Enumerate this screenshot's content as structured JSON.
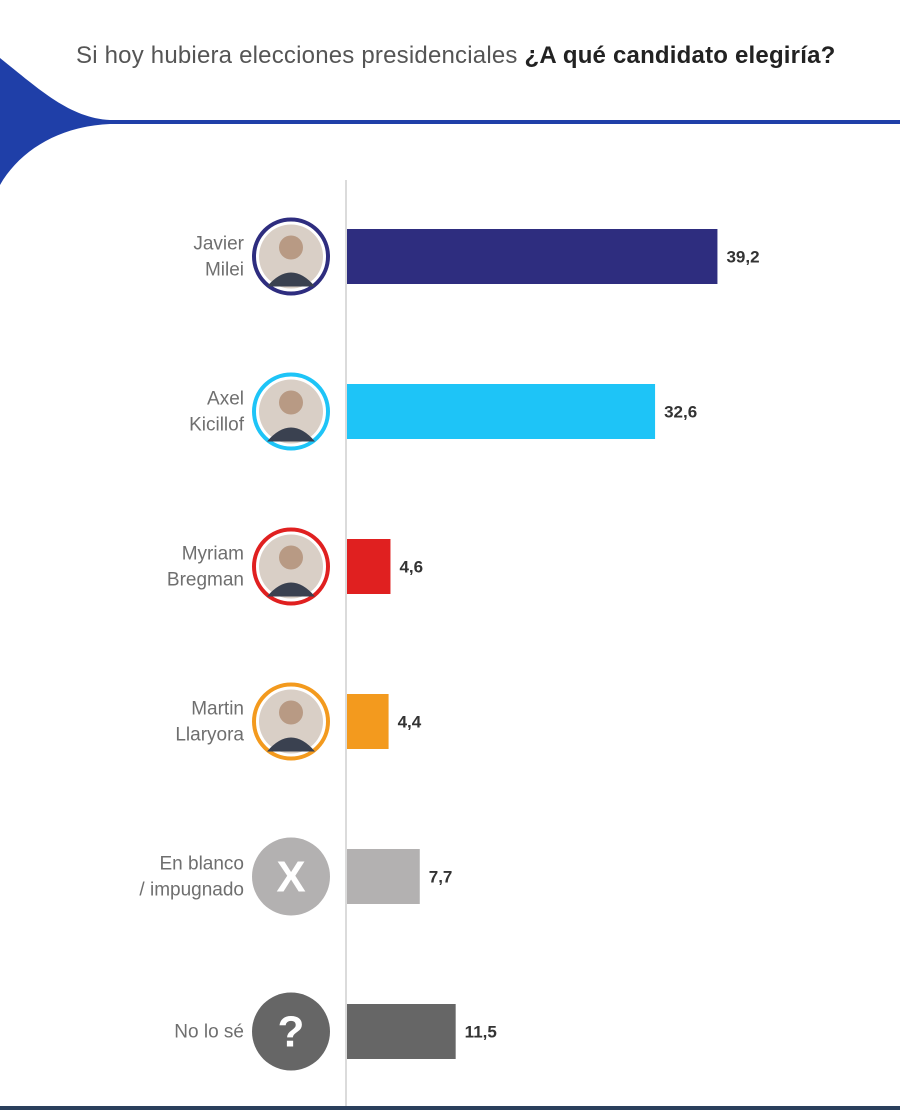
{
  "header": {
    "question_plain": "Si hoy hubiera elecciones presidenciales ",
    "question_bold": "¿A qué candidato elegiría?"
  },
  "colors": {
    "brand_blue": "#1f3fa8",
    "axis": "#cfcfcf"
  },
  "chart_data": {
    "type": "bar",
    "orientation": "horizontal",
    "title": "Si hoy hubiera elecciones presidenciales ¿A qué candidato elegiría?",
    "categories": [
      [
        "Javier",
        "Milei"
      ],
      [
        "Axel",
        "Kicillof"
      ],
      [
        "Myriam",
        "Bregman"
      ],
      [
        "Martin",
        "Llaryora"
      ],
      [
        "En blanco",
        "/ impugnado"
      ],
      [
        "No lo sé"
      ]
    ],
    "values": [
      39.2,
      32.6,
      4.6,
      4.4,
      7.7,
      11.5
    ],
    "value_labels": [
      "39,2",
      "32,6",
      "4,6",
      "4,4",
      "7,7",
      "11,5"
    ],
    "bar_colors": [
      "#2e2d7f",
      "#1ec4f7",
      "#e02020",
      "#f39a1e",
      "#b3b1b1",
      "#666666"
    ],
    "avatars": [
      {
        "icon": "candidate-photo-icon",
        "ring": "#2e2d7f"
      },
      {
        "icon": "candidate-photo-icon",
        "ring": "#1ec4f7"
      },
      {
        "icon": "candidate-photo-icon",
        "ring": "#e02020"
      },
      {
        "icon": "candidate-photo-icon",
        "ring": "#f39a1e"
      },
      {
        "icon": "x-mark-icon",
        "glyph": "X",
        "fill": "#b3b1b1"
      },
      {
        "icon": "question-mark-icon",
        "glyph": "?",
        "fill": "#666666"
      }
    ],
    "xlim": [
      0,
      100
    ],
    "grid": false,
    "legend": "none"
  }
}
